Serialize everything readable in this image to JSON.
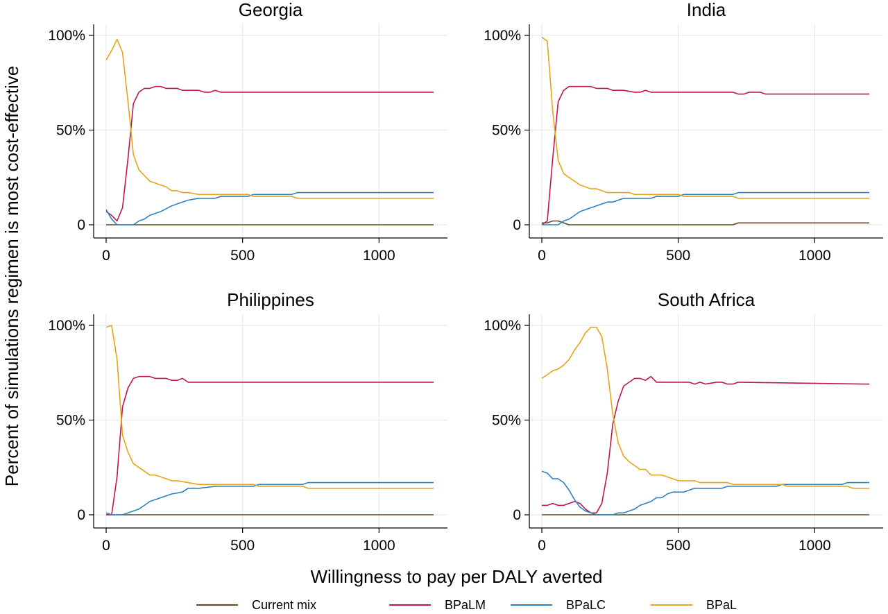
{
  "figure": {
    "ylabel": "Percent of simulations regimen is most cost-effective",
    "xlabel": "Willingness to pay per DALY averted",
    "legend_position": "bottom"
  },
  "legend": [
    {
      "name": "Current mix",
      "color": "#5c4a24"
    },
    {
      "name": "BPaLM",
      "color": "#c0164a"
    },
    {
      "name": "BPaLC",
      "color": "#2a82c2"
    },
    {
      "name": "BPaL",
      "color": "#e8a317"
    }
  ],
  "chart_data": [
    {
      "type": "line",
      "title": "Georgia",
      "xlim": [
        0,
        1200
      ],
      "ylim": [
        0,
        100
      ],
      "xticks": [
        0,
        500,
        1000
      ],
      "xtick_labels": [
        "0",
        "500",
        "1000"
      ],
      "yticks": [
        0,
        50,
        100
      ],
      "ytick_labels": [
        "0",
        "50%",
        "100%"
      ],
      "grid": true,
      "series": [
        {
          "name": "Current mix",
          "color": "#5c4a24",
          "x": [
            0,
            1200
          ],
          "y": [
            0,
            0
          ]
        },
        {
          "name": "BPaLM",
          "color": "#c0164a",
          "x": [
            0,
            20,
            40,
            60,
            80,
            100,
            120,
            140,
            160,
            180,
            200,
            220,
            260,
            280,
            340,
            360,
            380,
            400,
            420,
            1200
          ],
          "y": [
            7,
            5,
            2,
            9,
            35,
            64,
            70,
            72,
            72,
            73,
            73,
            72,
            72,
            71,
            71,
            70,
            70,
            71,
            70,
            70
          ]
        },
        {
          "name": "BPaLC",
          "color": "#2a82c2",
          "x": [
            0,
            20,
            40,
            60,
            80,
            100,
            120,
            140,
            160,
            200,
            240,
            280,
            300,
            340,
            400,
            420,
            500,
            520,
            540,
            680,
            700,
            1200
          ],
          "y": [
            8,
            3,
            0,
            0,
            0,
            0,
            2,
            3,
            5,
            7,
            10,
            12,
            13,
            14,
            14,
            15,
            15,
            15,
            16,
            16,
            17,
            17
          ]
        },
        {
          "name": "BPaL",
          "color": "#e8a317",
          "x": [
            0,
            20,
            40,
            60,
            80,
            100,
            120,
            140,
            160,
            180,
            200,
            220,
            240,
            260,
            280,
            300,
            340,
            400,
            500,
            520,
            540,
            680,
            700,
            1200
          ],
          "y": [
            87,
            92,
            98,
            91,
            65,
            37,
            29,
            26,
            23,
            22,
            21,
            20,
            18,
            18,
            17,
            17,
            16,
            16,
            16,
            16,
            15,
            15,
            14,
            14
          ]
        }
      ]
    },
    {
      "type": "line",
      "title": "India",
      "xlim": [
        0,
        1200
      ],
      "ylim": [
        0,
        100
      ],
      "xticks": [
        0,
        500,
        1000
      ],
      "xtick_labels": [
        "0",
        "500",
        "1000"
      ],
      "yticks": [
        0,
        50,
        100
      ],
      "ytick_labels": [
        "0",
        "50%",
        "100%"
      ],
      "grid": true,
      "series": [
        {
          "name": "Current mix",
          "color": "#5c4a24",
          "x": [
            0,
            20,
            40,
            60,
            80,
            100,
            700,
            720,
            1200
          ],
          "y": [
            1,
            1,
            2,
            2,
            1,
            0,
            0,
            1,
            1
          ]
        },
        {
          "name": "BPaLM",
          "color": "#c0164a",
          "x": [
            0,
            20,
            40,
            60,
            80,
            100,
            120,
            180,
            200,
            240,
            260,
            300,
            340,
            360,
            380,
            400,
            500,
            700,
            720,
            740,
            760,
            800,
            820,
            1200
          ],
          "y": [
            0,
            2,
            35,
            65,
            71,
            73,
            73,
            73,
            72,
            72,
            71,
            71,
            70,
            70,
            71,
            70,
            70,
            70,
            69,
            69,
            70,
            70,
            69,
            69
          ]
        },
        {
          "name": "BPaLC",
          "color": "#2a82c2",
          "x": [
            0,
            20,
            40,
            60,
            80,
            100,
            120,
            140,
            200,
            240,
            260,
            280,
            300,
            400,
            420,
            500,
            520,
            700,
            720,
            1200
          ],
          "y": [
            0,
            0,
            0,
            0,
            2,
            3,
            5,
            7,
            10,
            12,
            12,
            13,
            14,
            14,
            15,
            15,
            16,
            16,
            17,
            17
          ]
        },
        {
          "name": "BPaL",
          "color": "#e8a317",
          "x": [
            0,
            20,
            40,
            60,
            80,
            100,
            120,
            140,
            160,
            180,
            200,
            240,
            300,
            320,
            340,
            500,
            520,
            700,
            720,
            1200
          ],
          "y": [
            99,
            97,
            60,
            34,
            27,
            25,
            23,
            21,
            20,
            19,
            19,
            17,
            17,
            17,
            16,
            16,
            15,
            15,
            14,
            14
          ]
        }
      ]
    },
    {
      "type": "line",
      "title": "Philippines",
      "xlim": [
        0,
        1200
      ],
      "ylim": [
        0,
        100
      ],
      "xticks": [
        0,
        500,
        1000
      ],
      "xtick_labels": [
        "0",
        "500",
        "1000"
      ],
      "yticks": [
        0,
        50,
        100
      ],
      "ytick_labels": [
        "0",
        "50%",
        "100%"
      ],
      "grid": true,
      "series": [
        {
          "name": "Current mix",
          "color": "#5c4a24",
          "x": [
            0,
            1200
          ],
          "y": [
            0,
            0
          ]
        },
        {
          "name": "BPaLM",
          "color": "#c0164a",
          "x": [
            0,
            20,
            40,
            60,
            80,
            100,
            120,
            160,
            180,
            220,
            240,
            260,
            280,
            300,
            1200
          ],
          "y": [
            0,
            0,
            20,
            57,
            67,
            72,
            73,
            73,
            72,
            72,
            71,
            71,
            72,
            70,
            70
          ]
        },
        {
          "name": "BPaLC",
          "color": "#2a82c2",
          "x": [
            0,
            20,
            40,
            60,
            80,
            100,
            120,
            140,
            160,
            200,
            240,
            280,
            300,
            340,
            400,
            540,
            560,
            720,
            740,
            1200
          ],
          "y": [
            1,
            0,
            0,
            0,
            1,
            2,
            3,
            5,
            7,
            9,
            11,
            12,
            14,
            14,
            15,
            15,
            16,
            16,
            17,
            17
          ]
        },
        {
          "name": "BPaL",
          "color": "#e8a317",
          "x": [
            0,
            20,
            40,
            60,
            80,
            100,
            120,
            140,
            160,
            180,
            200,
            240,
            260,
            300,
            340,
            540,
            560,
            720,
            740,
            1200
          ],
          "y": [
            99,
            100,
            82,
            42,
            33,
            27,
            25,
            23,
            21,
            21,
            20,
            18,
            18,
            17,
            16,
            16,
            15,
            15,
            14,
            14
          ]
        }
      ]
    },
    {
      "type": "line",
      "title": "South Africa",
      "xlim": [
        0,
        1200
      ],
      "ylim": [
        0,
        100
      ],
      "xticks": [
        0,
        500,
        1000
      ],
      "xtick_labels": [
        "0",
        "500",
        "1000"
      ],
      "yticks": [
        0,
        50,
        100
      ],
      "ytick_labels": [
        "0",
        "50%",
        "100%"
      ],
      "grid": true,
      "series": [
        {
          "name": "Current mix",
          "color": "#5c4a24",
          "x": [
            0,
            1200
          ],
          "y": [
            0,
            0
          ]
        },
        {
          "name": "BPaLM",
          "color": "#c0164a",
          "x": [
            0,
            20,
            40,
            60,
            80,
            100,
            120,
            140,
            160,
            180,
            200,
            220,
            240,
            260,
            280,
            300,
            320,
            340,
            360,
            380,
            400,
            420,
            540,
            560,
            580,
            600,
            640,
            660,
            680,
            700,
            720,
            1180,
            1200
          ],
          "y": [
            5,
            5,
            6,
            5,
            5,
            6,
            7,
            6,
            3,
            1,
            1,
            6,
            22,
            48,
            60,
            68,
            70,
            72,
            72,
            71,
            73,
            70,
            70,
            69,
            70,
            69,
            70,
            70,
            69,
            69,
            70,
            69,
            69
          ]
        },
        {
          "name": "BPaLC",
          "color": "#2a82c2",
          "x": [
            0,
            20,
            40,
            60,
            80,
            100,
            120,
            140,
            160,
            180,
            200,
            220,
            260,
            280,
            300,
            320,
            340,
            360,
            380,
            400,
            420,
            440,
            460,
            480,
            520,
            540,
            560,
            580,
            600,
            660,
            680,
            720,
            860,
            880,
            1100,
            1120,
            1200
          ],
          "y": [
            23,
            22,
            19,
            19,
            17,
            13,
            8,
            4,
            2,
            1,
            0,
            0,
            0,
            1,
            1,
            2,
            3,
            5,
            6,
            7,
            9,
            9,
            11,
            12,
            12,
            13,
            14,
            14,
            14,
            14,
            15,
            15,
            15,
            16,
            16,
            17,
            17
          ]
        },
        {
          "name": "BPaL",
          "color": "#e8a317",
          "x": [
            0,
            20,
            40,
            60,
            80,
            100,
            120,
            140,
            160,
            180,
            200,
            220,
            240,
            260,
            280,
            300,
            320,
            340,
            360,
            380,
            400,
            440,
            480,
            500,
            540,
            560,
            580,
            600,
            680,
            700,
            720,
            880,
            900,
            1120,
            1140,
            1200
          ],
          "y": [
            72,
            74,
            76,
            77,
            79,
            82,
            87,
            91,
            96,
            99,
            99,
            94,
            77,
            53,
            38,
            31,
            28,
            26,
            24,
            24,
            21,
            21,
            19,
            18,
            18,
            18,
            17,
            17,
            17,
            16,
            16,
            16,
            15,
            15,
            14,
            14
          ]
        }
      ]
    }
  ]
}
